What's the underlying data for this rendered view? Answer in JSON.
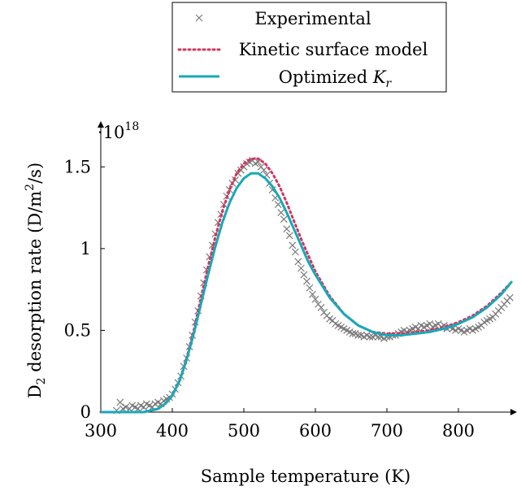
{
  "chart_data": {
    "type": "line",
    "xlabel": "Sample temperature (K)",
    "ylabel": "D2 desorption rate (D/m2/s)",
    "ylabel_parts": {
      "prefix": "D",
      "sub": "2",
      "middle": " desorption rate (D/m",
      "sup": "2",
      "suffix": "/s)"
    },
    "y_multiplier": {
      "base": "·10",
      "exp": "18"
    },
    "xlim": [
      300,
      875
    ],
    "ylim": [
      0,
      1.75
    ],
    "x_ticks": [
      300,
      400,
      500,
      600,
      700,
      800
    ],
    "x_tick_labels": [
      "300",
      "400",
      "500",
      "600",
      "700",
      "800"
    ],
    "y_ticks": [
      0,
      0.5,
      1,
      1.5
    ],
    "y_tick_labels": [
      "0",
      "0.5",
      "1",
      "1.5"
    ],
    "grid": false,
    "legend_position": "top-center",
    "legend": [
      {
        "label": "Experimental"
      },
      {
        "label": "Kinetic surface model"
      },
      {
        "label_main": "Optimized ",
        "label_var": "K",
        "label_sub": "r"
      }
    ],
    "colors": {
      "experimental": "#7a7a7a",
      "kinetic": "#d6335e",
      "optimized": "#17a9b8",
      "axis": "#000000"
    },
    "series": [
      {
        "name": "Experimental",
        "style": "markers-x",
        "x": [
          322,
          327,
          331,
          335,
          340,
          344,
          348,
          352,
          356,
          360,
          364,
          368,
          372,
          376,
          380,
          384,
          388,
          392,
          396,
          400,
          404,
          408,
          412,
          416,
          420,
          424,
          428,
          432,
          436,
          440,
          444,
          448,
          452,
          456,
          460,
          464,
          468,
          472,
          476,
          480,
          484,
          488,
          492,
          496,
          500,
          504,
          508,
          512,
          516,
          520,
          524,
          528,
          532,
          536,
          540,
          544,
          548,
          552,
          556,
          560,
          564,
          568,
          572,
          576,
          580,
          584,
          588,
          592,
          596,
          600,
          604,
          608,
          612,
          616,
          620,
          624,
          628,
          632,
          636,
          640,
          644,
          648,
          652,
          656,
          660,
          664,
          668,
          672,
          676,
          680,
          684,
          688,
          692,
          696,
          700,
          704,
          708,
          712,
          716,
          720,
          724,
          728,
          732,
          736,
          740,
          744,
          748,
          752,
          756,
          760,
          764,
          768,
          772,
          776,
          780,
          784,
          788,
          792,
          796,
          800,
          804,
          808,
          812,
          816,
          820,
          824,
          828,
          832,
          836,
          840,
          844,
          848,
          852,
          856,
          860,
          864,
          868,
          872
        ],
        "y": [
          0.01,
          0.06,
          0.02,
          0.03,
          0.02,
          0.04,
          0.03,
          0.02,
          0.04,
          0.03,
          0.05,
          0.04,
          0.03,
          0.05,
          0.06,
          0.05,
          0.07,
          0.08,
          0.09,
          0.11,
          0.14,
          0.18,
          0.22,
          0.28,
          0.33,
          0.4,
          0.47,
          0.55,
          0.62,
          0.71,
          0.79,
          0.87,
          0.95,
          1.02,
          1.09,
          1.16,
          1.21,
          1.27,
          1.32,
          1.36,
          1.4,
          1.42,
          1.46,
          1.48,
          1.5,
          1.52,
          1.53,
          1.54,
          1.52,
          1.53,
          1.5,
          1.48,
          1.45,
          1.4,
          1.36,
          1.31,
          1.27,
          1.22,
          1.18,
          1.12,
          1.08,
          1.02,
          0.98,
          0.92,
          0.88,
          0.84,
          0.8,
          0.76,
          0.72,
          0.69,
          0.66,
          0.64,
          0.61,
          0.59,
          0.57,
          0.56,
          0.54,
          0.53,
          0.52,
          0.51,
          0.5,
          0.49,
          0.48,
          0.48,
          0.47,
          0.47,
          0.46,
          0.47,
          0.46,
          0.46,
          0.47,
          0.46,
          0.46,
          0.45,
          0.46,
          0.46,
          0.47,
          0.47,
          0.48,
          0.49,
          0.5,
          0.49,
          0.5,
          0.51,
          0.52,
          0.51,
          0.53,
          0.52,
          0.53,
          0.54,
          0.52,
          0.53,
          0.54,
          0.52,
          0.53,
          0.51,
          0.52,
          0.51,
          0.5,
          0.51,
          0.5,
          0.49,
          0.5,
          0.51,
          0.5,
          0.51,
          0.52,
          0.53,
          0.55,
          0.56,
          0.57,
          0.58,
          0.6,
          0.62,
          0.64,
          0.66,
          0.68,
          0.7
        ]
      },
      {
        "name": "Kinetic surface model",
        "style": "dotted",
        "x": [
          300,
          360,
          380,
          390,
          400,
          410,
          420,
          430,
          440,
          450,
          460,
          470,
          480,
          490,
          500,
          510,
          520,
          530,
          540,
          550,
          560,
          570,
          580,
          590,
          600,
          620,
          640,
          660,
          680,
          700,
          720,
          740,
          760,
          780,
          800,
          820,
          840,
          860,
          875
        ],
        "y": [
          0,
          0,
          0.02,
          0.05,
          0.1,
          0.19,
          0.33,
          0.5,
          0.7,
          0.89,
          1.07,
          1.23,
          1.36,
          1.46,
          1.52,
          1.55,
          1.55,
          1.52,
          1.46,
          1.38,
          1.28,
          1.17,
          1.06,
          0.96,
          0.86,
          0.71,
          0.6,
          0.53,
          0.49,
          0.48,
          0.48,
          0.49,
          0.5,
          0.52,
          0.55,
          0.59,
          0.65,
          0.73,
          0.8
        ]
      },
      {
        "name": "Optimized Kr",
        "style": "solid",
        "x": [
          300,
          360,
          380,
          390,
          400,
          410,
          420,
          430,
          440,
          450,
          460,
          470,
          480,
          490,
          500,
          510,
          520,
          530,
          540,
          550,
          560,
          570,
          580,
          590,
          600,
          620,
          640,
          660,
          680,
          700,
          720,
          740,
          760,
          780,
          800,
          820,
          840,
          860,
          875
        ],
        "y": [
          0,
          0,
          0.02,
          0.05,
          0.1,
          0.19,
          0.32,
          0.48,
          0.66,
          0.84,
          1.01,
          1.16,
          1.28,
          1.37,
          1.43,
          1.46,
          1.46,
          1.43,
          1.38,
          1.31,
          1.22,
          1.12,
          1.02,
          0.92,
          0.84,
          0.7,
          0.6,
          0.53,
          0.49,
          0.47,
          0.47,
          0.48,
          0.49,
          0.51,
          0.54,
          0.58,
          0.64,
          0.72,
          0.8
        ]
      }
    ]
  }
}
